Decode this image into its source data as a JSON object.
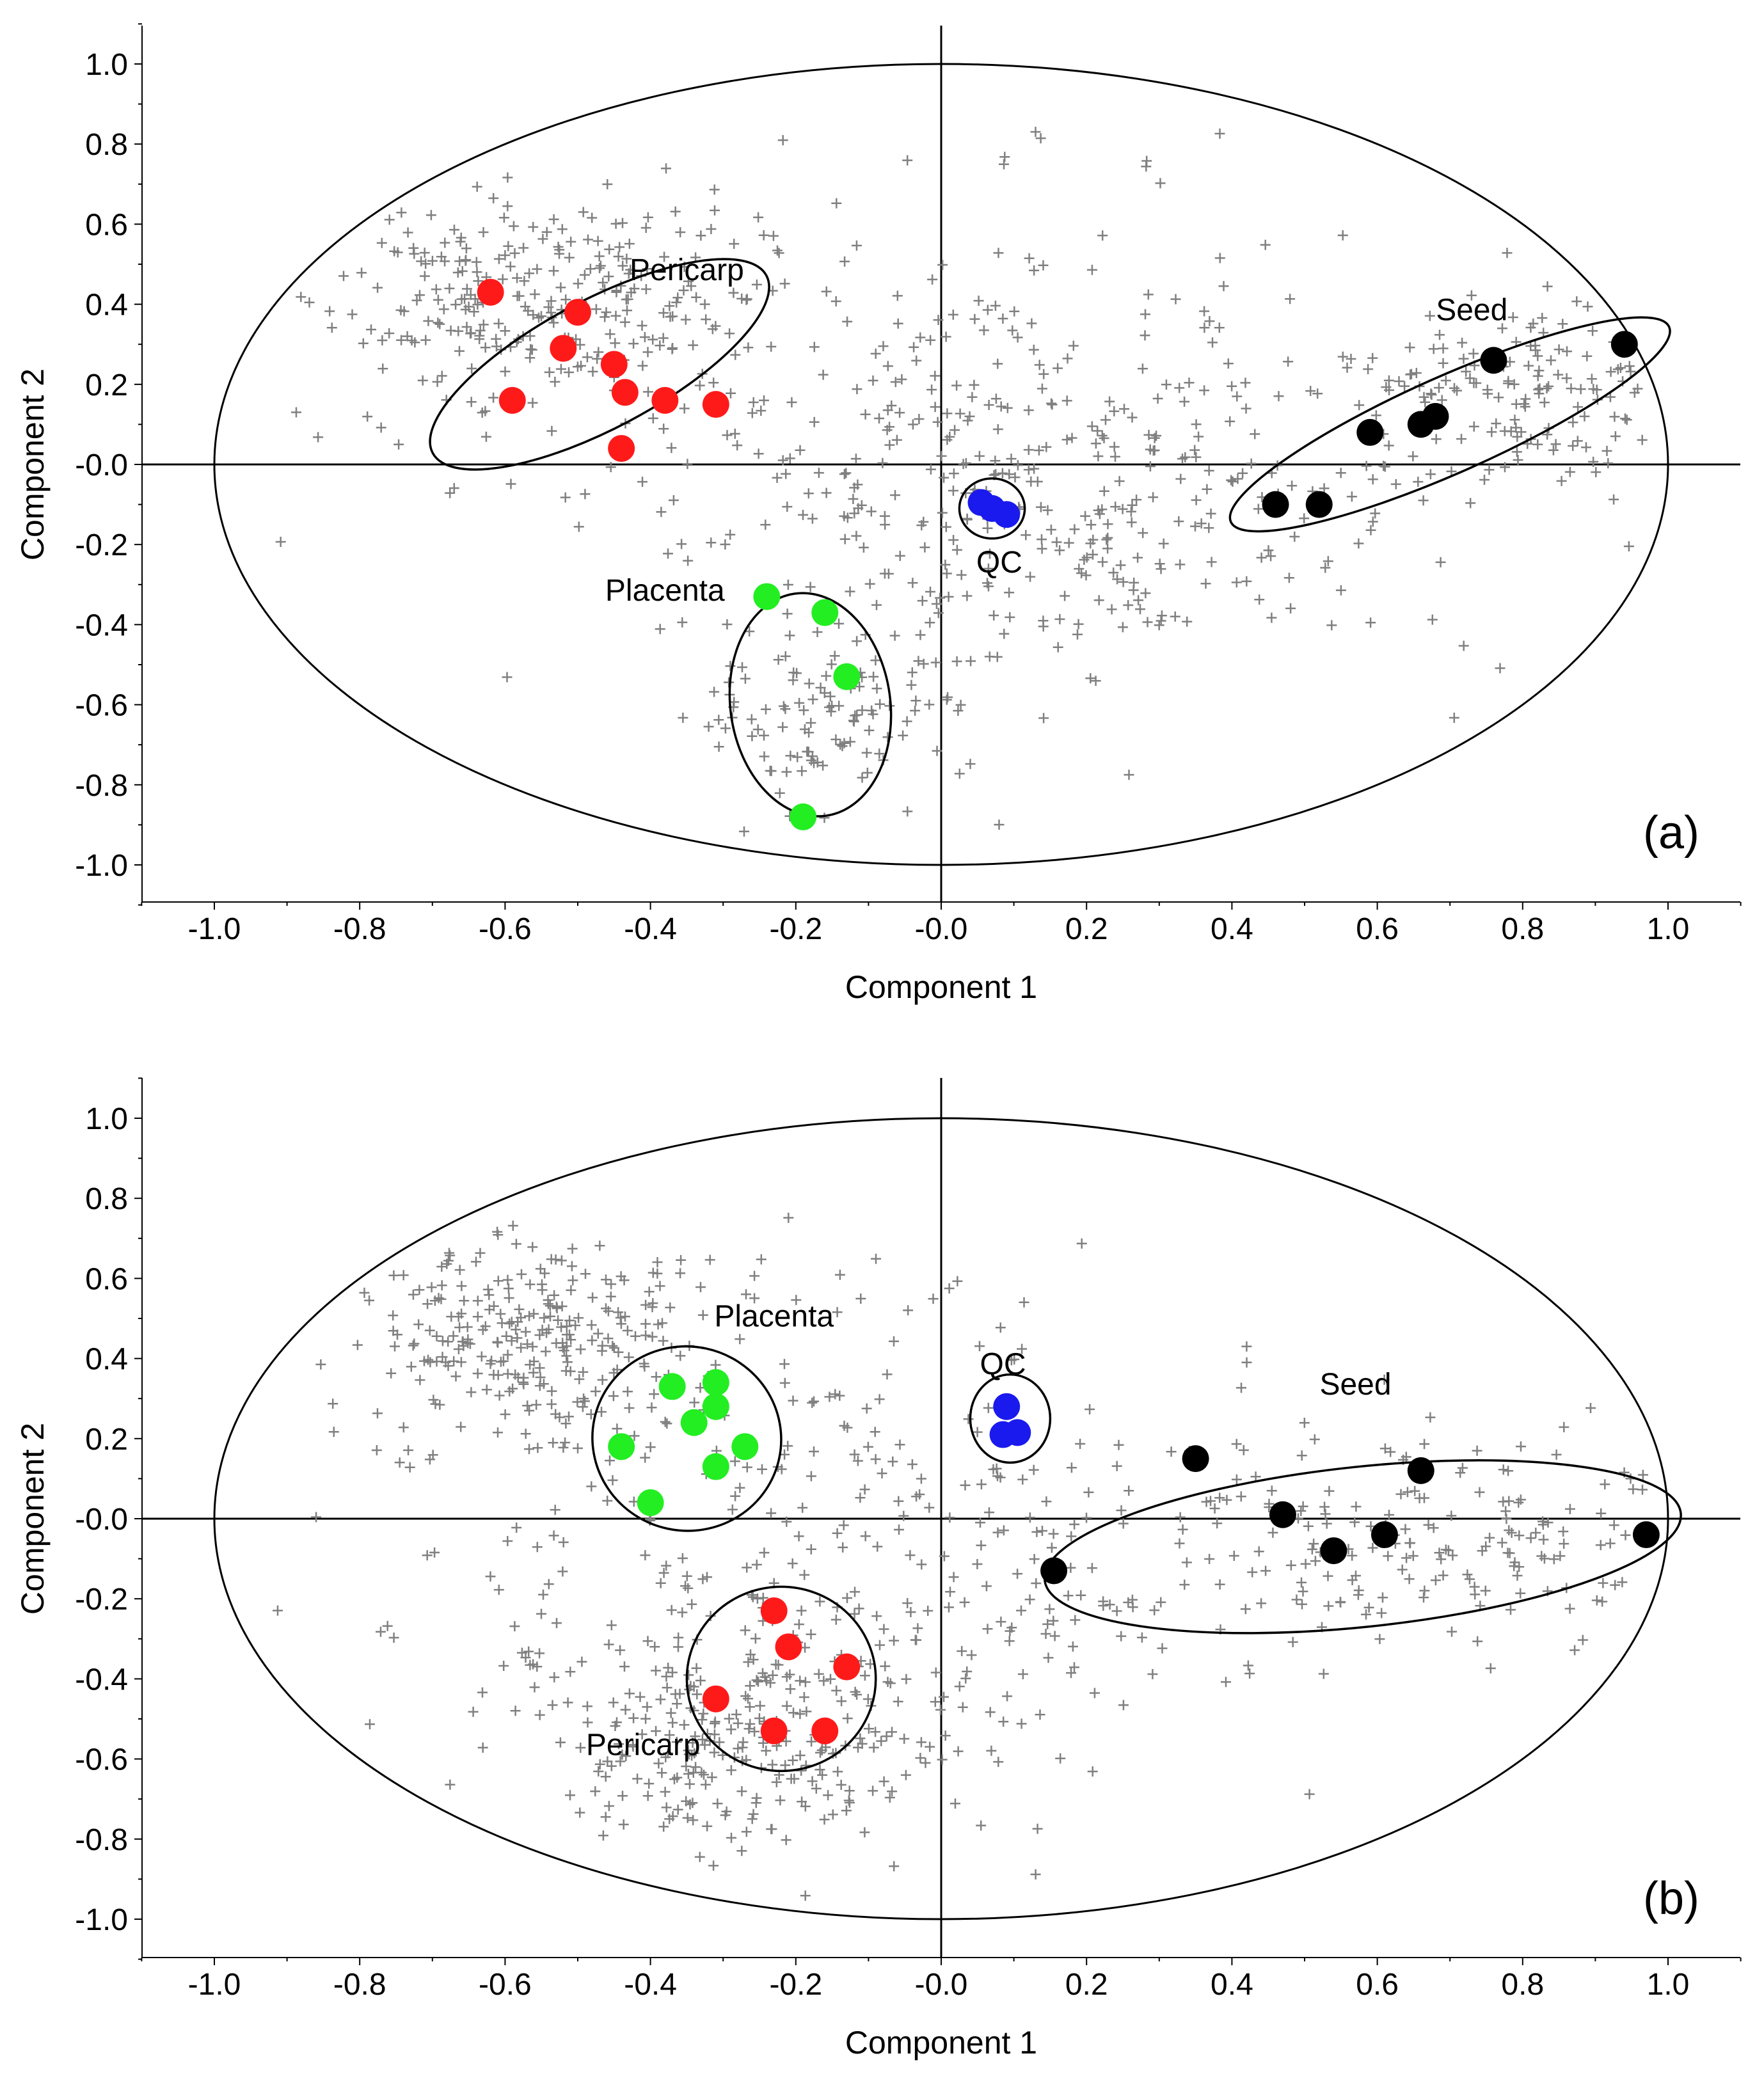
{
  "colors": {
    "pericarp": "#ff1a1a",
    "placenta": "#22ee22",
    "qc": "#1a1aee",
    "seed": "#000000",
    "loadings": "#808080",
    "axes": "#000000"
  },
  "chart_data": [
    {
      "type": "scatter",
      "panel_label": "(a)",
      "xlabel": "Component 1",
      "ylabel": "Component 2",
      "xlim": [
        -1.1,
        1.1
      ],
      "ylim": [
        -1.1,
        1.1
      ],
      "xticks": [
        -1.0,
        -0.8,
        -0.6,
        -0.4,
        -0.2,
        0.0,
        0.2,
        0.4,
        0.6,
        0.8,
        1.0
      ],
      "yticks": [
        1.0,
        0.8,
        0.6,
        0.4,
        0.2,
        0.0,
        -0.2,
        -0.4,
        -0.6,
        -0.8,
        -1.0
      ],
      "xtick_labels": [
        "-1.0",
        "-0.8",
        "-0.6",
        "-0.4",
        "-0.2",
        "-0.0",
        "0.2",
        "0.4",
        "0.6",
        "0.8",
        "1.0"
      ],
      "ytick_labels": [
        "1.0",
        "0.8",
        "0.6",
        "0.4",
        "0.2",
        "-0.0",
        "-0.2",
        "-0.4",
        "-0.6",
        "-0.8",
        "-1.0"
      ],
      "hotelling_ellipse": {
        "cx": 0.0,
        "cy": 0.0,
        "rx": 1.0,
        "ry": 1.0
      },
      "loadings_seed": 11,
      "loadings_clusters": [
        {
          "cx": -0.55,
          "cy": 0.42,
          "sx": 0.14,
          "sy": 0.13,
          "n": 260
        },
        {
          "cx": 0.82,
          "cy": 0.2,
          "sx": 0.13,
          "sy": 0.11,
          "n": 170
        },
        {
          "cx": -0.15,
          "cy": -0.6,
          "sx": 0.1,
          "sy": 0.15,
          "n": 110
        },
        {
          "cx": 0.15,
          "cy": -0.15,
          "sx": 0.2,
          "sy": 0.2,
          "n": 200
        },
        {
          "cx": 0.0,
          "cy": 0.15,
          "sx": 0.45,
          "sy": 0.28,
          "n": 300
        }
      ],
      "groups": [
        {
          "name": "Pericarp",
          "color": "#ff1a1a",
          "label": {
            "text": "Pericarp",
            "x": -0.35,
            "y": 0.46
          },
          "ellipse": {
            "cx": -0.47,
            "cy": 0.25,
            "rx": 0.26,
            "ry": 0.16,
            "angle": -28
          },
          "points": [
            [
              -0.62,
              0.43
            ],
            [
              -0.5,
              0.38
            ],
            [
              -0.52,
              0.29
            ],
            [
              -0.45,
              0.25
            ],
            [
              -0.435,
              0.18
            ],
            [
              -0.38,
              0.16
            ],
            [
              -0.31,
              0.15
            ],
            [
              -0.59,
              0.16
            ],
            [
              -0.44,
              0.04
            ]
          ]
        },
        {
          "name": "Placenta",
          "color": "#22ee22",
          "label": {
            "text": "Placenta",
            "x": -0.38,
            "y": -0.34
          },
          "ellipse": {
            "cx": -0.18,
            "cy": -0.6,
            "rx": 0.11,
            "ry": 0.28,
            "angle": -8
          },
          "points": [
            [
              -0.24,
              -0.33
            ],
            [
              -0.16,
              -0.37
            ],
            [
              -0.13,
              -0.53
            ],
            [
              -0.19,
              -0.88
            ]
          ]
        },
        {
          "name": "QC",
          "color": "#1a1aee",
          "label": {
            "text": "QC",
            "x": 0.08,
            "y": -0.27
          },
          "ellipse": {
            "cx": 0.07,
            "cy": -0.11,
            "rx": 0.045,
            "ry": 0.075,
            "angle": 0
          },
          "points": [
            [
              0.055,
              -0.095
            ],
            [
              0.07,
              -0.11
            ],
            [
              0.09,
              -0.125
            ]
          ]
        },
        {
          "name": "Seed",
          "color": "#000000",
          "label": {
            "text": "Seed",
            "x": 0.73,
            "y": 0.36
          },
          "ellipse": {
            "cx": 0.7,
            "cy": 0.1,
            "rx": 0.33,
            "ry": 0.12,
            "angle": -24
          },
          "points": [
            [
              0.94,
              0.3
            ],
            [
              0.76,
              0.26
            ],
            [
              0.68,
              0.12
            ],
            [
              0.66,
              0.1
            ],
            [
              0.59,
              0.08
            ],
            [
              0.52,
              -0.1
            ],
            [
              0.46,
              -0.1
            ]
          ]
        }
      ]
    },
    {
      "type": "scatter",
      "panel_label": "(b)",
      "xlabel": "Component 1",
      "ylabel": "Component 2",
      "xlim": [
        -1.1,
        1.1
      ],
      "ylim": [
        -1.1,
        1.1
      ],
      "xticks": [
        -1.0,
        -0.8,
        -0.6,
        -0.4,
        -0.2,
        0.0,
        0.2,
        0.4,
        0.6,
        0.8,
        1.0
      ],
      "yticks": [
        1.0,
        0.8,
        0.6,
        0.4,
        0.2,
        0.0,
        -0.2,
        -0.4,
        -0.6,
        -0.8,
        -1.0
      ],
      "xtick_labels": [
        "-1.0",
        "-0.8",
        "-0.6",
        "-0.4",
        "-0.2",
        "-0.0",
        "0.2",
        "0.4",
        "0.6",
        "0.8",
        "1.0"
      ],
      "ytick_labels": [
        "1.0",
        "0.8",
        "0.6",
        "0.4",
        "0.2",
        "-0.0",
        "-0.2",
        "-0.4",
        "-0.6",
        "-0.8",
        "-1.0"
      ],
      "hotelling_ellipse": {
        "cx": 0.0,
        "cy": 0.0,
        "rx": 1.0,
        "ry": 1.0
      },
      "loadings_seed": 27,
      "loadings_clusters": [
        {
          "cx": -0.55,
          "cy": 0.45,
          "sx": 0.12,
          "sy": 0.12,
          "n": 260
        },
        {
          "cx": -0.28,
          "cy": -0.55,
          "sx": 0.14,
          "sy": 0.14,
          "n": 260
        },
        {
          "cx": 0.7,
          "cy": -0.05,
          "sx": 0.2,
          "sy": 0.13,
          "n": 200
        },
        {
          "cx": 0.05,
          "cy": -0.1,
          "sx": 0.22,
          "sy": 0.3,
          "n": 170
        },
        {
          "cx": -0.35,
          "cy": 0.0,
          "sx": 0.25,
          "sy": 0.3,
          "n": 180
        }
      ],
      "groups": [
        {
          "name": "Placenta",
          "color": "#22ee22",
          "label": {
            "text": "Placenta",
            "x": -0.23,
            "y": 0.48
          },
          "ellipse": {
            "cx": -0.35,
            "cy": 0.2,
            "rx": 0.13,
            "ry": 0.23,
            "angle": 12
          },
          "points": [
            [
              -0.37,
              0.33
            ],
            [
              -0.31,
              0.34
            ],
            [
              -0.31,
              0.28
            ],
            [
              -0.34,
              0.24
            ],
            [
              -0.44,
              0.18
            ],
            [
              -0.27,
              0.18
            ],
            [
              -0.31,
              0.13
            ],
            [
              -0.4,
              0.04
            ]
          ]
        },
        {
          "name": "Pericarp",
          "color": "#ff1a1a",
          "label": {
            "text": "Pericarp",
            "x": -0.41,
            "y": -0.59
          },
          "ellipse": {
            "cx": -0.22,
            "cy": -0.4,
            "rx": 0.13,
            "ry": 0.23,
            "angle": 0
          },
          "points": [
            [
              -0.23,
              -0.23
            ],
            [
              -0.21,
              -0.32
            ],
            [
              -0.13,
              -0.37
            ],
            [
              -0.31,
              -0.45
            ],
            [
              -0.23,
              -0.53
            ],
            [
              -0.16,
              -0.53
            ]
          ]
        },
        {
          "name": "QC",
          "color": "#1a1aee",
          "label": {
            "text": "QC",
            "x": 0.085,
            "y": 0.36
          },
          "ellipse": {
            "cx": 0.095,
            "cy": 0.25,
            "rx": 0.055,
            "ry": 0.11,
            "angle": 0
          },
          "points": [
            [
              0.09,
              0.28
            ],
            [
              0.085,
              0.21
            ],
            [
              0.105,
              0.215
            ]
          ]
        },
        {
          "name": "Seed",
          "color": "#000000",
          "label": {
            "text": "Seed",
            "x": 0.57,
            "y": 0.31
          },
          "ellipse": {
            "cx": 0.58,
            "cy": -0.07,
            "rx": 0.44,
            "ry": 0.2,
            "angle": -6
          },
          "points": [
            [
              0.35,
              0.15
            ],
            [
              0.66,
              0.12
            ],
            [
              0.47,
              0.01
            ],
            [
              0.54,
              -0.08
            ],
            [
              0.61,
              -0.04
            ],
            [
              0.97,
              -0.04
            ],
            [
              0.155,
              -0.13
            ]
          ]
        }
      ]
    }
  ]
}
